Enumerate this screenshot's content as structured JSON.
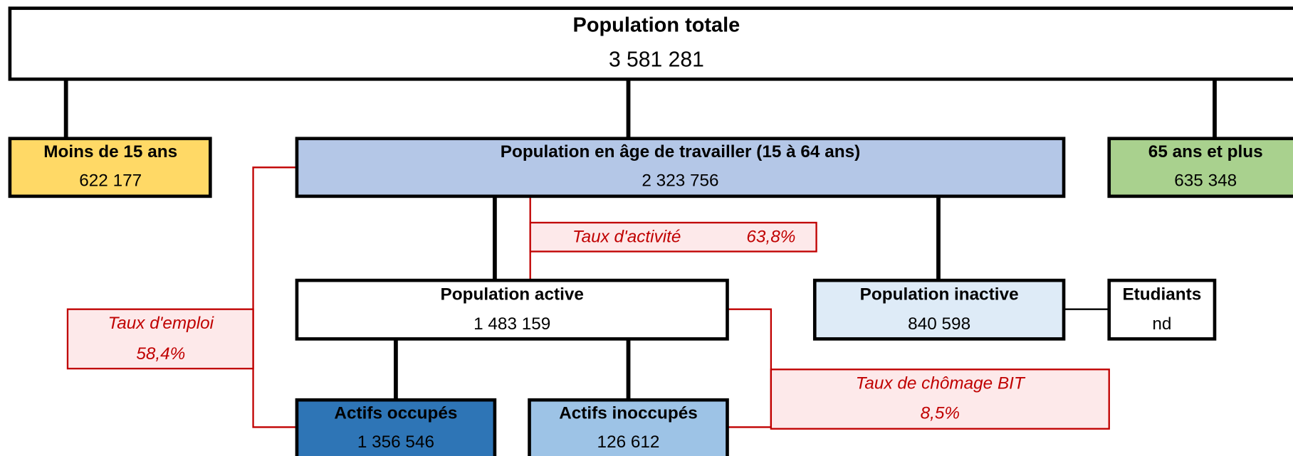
{
  "nodes": [
    {
      "label": "Population totale",
      "value": "3 581 281"
    },
    {
      "label": "Moins de 15 ans",
      "value": "622 177"
    },
    {
      "label": "Population en âge de travailler (15 à 64 ans)",
      "value": "2 323 756"
    },
    {
      "label": "65 ans et plus",
      "value": "635 348"
    },
    {
      "label": "Population active",
      "value": "1 483 159"
    },
    {
      "label": "Population inactive",
      "value": "840 598"
    },
    {
      "label": "Etudiants",
      "value": "nd"
    },
    {
      "label": "Actifs occupés",
      "value": "1 356 546"
    },
    {
      "label": "Actifs inoccupés",
      "value": "126 612"
    }
  ],
  "rates": [
    {
      "label": "Taux d'activité",
      "value": "63,8%"
    },
    {
      "label": "Taux d'emploi",
      "value": "58,4%"
    },
    {
      "label": "Taux de chômage BIT",
      "value": "8,5%"
    }
  ]
}
